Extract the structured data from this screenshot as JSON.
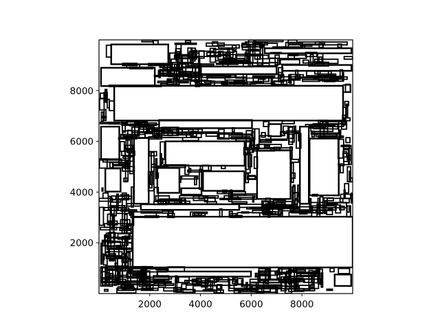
{
  "chart_data": {
    "type": "rectangle-packing",
    "xlim": [
      0,
      10000
    ],
    "ylim": [
      0,
      10000
    ],
    "aspect": "equal",
    "grid": false,
    "legend": "none",
    "title": "",
    "xlabel": "",
    "ylabel": "",
    "x_ticks": [
      {
        "value": 2000,
        "label": "2000"
      },
      {
        "value": 4000,
        "label": "4000"
      },
      {
        "value": 6000,
        "label": "6000"
      },
      {
        "value": 8000,
        "label": "8000"
      }
    ],
    "y_ticks": [
      {
        "value": 2000,
        "label": "2000"
      },
      {
        "value": 4000,
        "label": "4000"
      },
      {
        "value": 6000,
        "label": "6000"
      },
      {
        "value": 8000,
        "label": "8000"
      }
    ],
    "major_rectangles": [
      {
        "x0": 1330,
        "y0": 1030,
        "x1": 10000,
        "y1": 3030
      },
      {
        "x0": 600,
        "y0": 6820,
        "x1": 9620,
        "y1": 8190
      },
      {
        "x0": 2620,
        "y0": 5040,
        "x1": 5740,
        "y1": 6000
      },
      {
        "x0": 6230,
        "y0": 3730,
        "x1": 7550,
        "y1": 5640
      },
      {
        "x0": 8300,
        "y0": 3870,
        "x1": 9450,
        "y1": 6110
      },
      {
        "x0": 4100,
        "y0": 4050,
        "x1": 5730,
        "y1": 4820
      },
      {
        "x0": 2300,
        "y0": 3970,
        "x1": 3170,
        "y1": 4950
      },
      {
        "x0": 480,
        "y0": 9040,
        "x1": 2730,
        "y1": 9820
      },
      {
        "x0": 80,
        "y0": 8180,
        "x1": 2200,
        "y1": 8900
      },
      {
        "x0": 80,
        "y0": 5270,
        "x1": 800,
        "y1": 6580
      },
      {
        "x0": 1380,
        "y0": 3540,
        "x1": 1960,
        "y1": 6130
      },
      {
        "x0": 7920,
        "y0": 3540,
        "x1": 8270,
        "y1": 6580
      },
      {
        "x0": 2370,
        "y0": 6520,
        "x1": 6030,
        "y1": 6840
      },
      {
        "x0": 250,
        "y0": 4020,
        "x1": 850,
        "y1": 4930
      },
      {
        "x0": 1650,
        "y0": 3300,
        "x1": 5530,
        "y1": 3520
      },
      {
        "x0": 2300,
        "y0": 670,
        "x1": 5990,
        "y1": 870
      },
      {
        "x0": 6680,
        "y0": 6200,
        "x1": 7180,
        "y1": 6680
      },
      {
        "x0": 9290,
        "y0": 300,
        "x1": 9940,
        "y1": 750
      },
      {
        "x0": 3240,
        "y0": 3900,
        "x1": 4040,
        "y1": 4150
      },
      {
        "x0": 4020,
        "y0": 8650,
        "x1": 7000,
        "y1": 8950
      },
      {
        "x0": 7220,
        "y0": 8780,
        "x1": 9950,
        "y1": 9010
      },
      {
        "x0": 6530,
        "y0": 9470,
        "x1": 9950,
        "y1": 9670
      }
    ],
    "seed": 20240517,
    "small_rectangle_count": 700
  }
}
